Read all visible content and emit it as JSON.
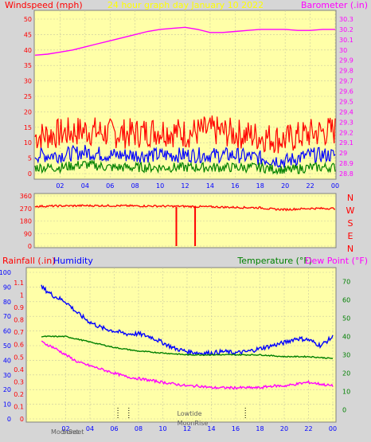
{
  "header": {
    "windspeed": "Windspeed (mph)",
    "title": "24 hour graph day   January 10 2022",
    "barometer": "Barometer (.in)",
    "rainfall": "Rainfall (.in)",
    "humidity": "Humidity",
    "temperature": "Temperature (°F)",
    "dewpoint": "Dew Point (°F)"
  },
  "compass": [
    "N",
    "W",
    "S",
    "E",
    "N"
  ],
  "events": {
    "lowtide": "Lowtide",
    "moonrise": "MoonRise",
    "moonset": "MoonSet",
    "sunset": "Sunset"
  },
  "colors": {
    "panel_bg": "#ffffa8",
    "outer_bg": "#d6d6d6",
    "wind_gust": "#ff0000",
    "wind_avg": "#0000ff",
    "wind_min": "#008000",
    "barometer": "#ff00ff",
    "humidity": "#0000ff",
    "temperature": "#008000",
    "dewpoint": "#ff00ff",
    "direction": "#ff0000"
  },
  "chart_data": [
    {
      "type": "line",
      "title": "24 hour graph day   January 10 2022",
      "x_ticks": [
        "02",
        "04",
        "06",
        "08",
        "10",
        "12",
        "14",
        "16",
        "18",
        "20",
        "22",
        "00"
      ],
      "y_left": {
        "label": "Windspeed (mph)",
        "range": [
          0,
          50
        ],
        "ticks": [
          "0",
          "5",
          "10",
          "15",
          "20",
          "25",
          "30",
          "35",
          "40",
          "45",
          "50"
        ]
      },
      "y_right": {
        "label": "Barometer (.in)",
        "range": [
          28.8,
          30.3
        ],
        "ticks": [
          "28.8",
          "28.9",
          "29",
          "29.1",
          "29.2",
          "29.3",
          "29.4",
          "29.5",
          "29.6",
          "29.7",
          "29.8",
          "29.9",
          "30",
          "30.1",
          "30.2",
          "30.3"
        ]
      },
      "series": [
        {
          "name": "Barometer (.in)",
          "axis": "right",
          "x": [
            0,
            1,
            2,
            3,
            4,
            5,
            6,
            7,
            8,
            9,
            10,
            11,
            12,
            13,
            14,
            15,
            16,
            17,
            18,
            19,
            20,
            21,
            22,
            23,
            24
          ],
          "y": [
            29.95,
            29.96,
            29.98,
            30.0,
            30.03,
            30.06,
            30.09,
            30.12,
            30.15,
            30.18,
            30.2,
            30.21,
            30.22,
            30.2,
            30.17,
            30.17,
            30.18,
            30.19,
            30.2,
            30.2,
            30.2,
            30.19,
            30.19,
            30.2,
            30.2
          ]
        },
        {
          "axis": "left",
          "x": [
            0,
            2,
            4,
            6,
            8,
            10,
            12,
            14,
            16,
            18,
            20,
            22,
            24
          ],
          "y": [
            12,
            13,
            14,
            13,
            13,
            14,
            13,
            14,
            13,
            12,
            11,
            13,
            14
          ]
        },
        {
          "axis": "left",
          "x": [
            0,
            2,
            4,
            6,
            8,
            10,
            12,
            14,
            16,
            18,
            20,
            22,
            24
          ],
          "y": [
            6,
            6,
            7,
            6,
            6,
            6,
            6,
            6,
            6,
            5,
            4,
            6,
            6
          ]
        },
        {
          "axis": "left",
          "x": [
            0,
            2,
            4,
            6,
            8,
            10,
            12,
            14,
            16,
            18,
            20,
            22,
            24
          ],
          "y": [
            2,
            2,
            3,
            2,
            2,
            2,
            2,
            2,
            2,
            2,
            1,
            2,
            2
          ]
        }
      ]
    },
    {
      "type": "line",
      "y_ticks": [
        "360",
        "270",
        "180",
        "90",
        "0"
      ],
      "series": [
        {
          "x": [
            0,
            2,
            4,
            6,
            8,
            10,
            11.3,
            11.5,
            12,
            12.8,
            13,
            14,
            16,
            18,
            19,
            20,
            22,
            24
          ],
          "y": [
            285,
            288,
            290,
            290,
            288,
            287,
            285,
            286,
            285,
            284,
            283,
            282,
            278,
            275,
            265,
            262,
            270,
            270
          ]
        }
      ],
      "spikes": [
        {
          "x": 11.3,
          "from": 280,
          "to": 0
        },
        {
          "x": 12.8,
          "from": 280,
          "to": 0
        }
      ]
    },
    {
      "type": "line",
      "x_ticks": [
        "02",
        "04",
        "06",
        "08",
        "10",
        "12",
        "14",
        "16",
        "18",
        "20",
        "22",
        "00"
      ],
      "y_left_rain": {
        "label": "Rainfall (.in)",
        "range": [
          0,
          1.1
        ],
        "ticks": [
          "0",
          "0.1",
          "0.2",
          "0.3",
          "0.4",
          "0.5",
          "0.6",
          "0.7",
          "0.8",
          "0.9",
          "1",
          "1.1"
        ]
      },
      "y_left_humidity": {
        "label": "Humidity",
        "range": [
          0,
          100
        ],
        "ticks": [
          "0",
          "10",
          "20",
          "30",
          "40",
          "50",
          "60",
          "70",
          "80",
          "90",
          "100"
        ]
      },
      "y_right": {
        "label": "Temperature (°F)",
        "range": [
          -5,
          75
        ],
        "ticks": [
          "0",
          "10",
          "20",
          "30",
          "40",
          "50",
          "60",
          "70"
        ]
      },
      "series": [
        {
          "name": "Humidity",
          "axis": "humidity",
          "x": [
            0,
            1,
            2,
            3,
            4,
            5,
            6,
            7,
            8,
            9,
            10,
            11,
            12,
            13,
            14,
            15,
            16,
            17,
            18,
            19,
            20,
            21,
            22,
            23,
            24
          ],
          "y": [
            90,
            84,
            80,
            72,
            66,
            62,
            60,
            58,
            58,
            56,
            52,
            48,
            46,
            45,
            45,
            46,
            45,
            46,
            48,
            50,
            52,
            55,
            54,
            50,
            56
          ]
        },
        {
          "name": "Temperature (°F)",
          "axis": "right",
          "x": [
            0,
            2,
            4,
            6,
            8,
            10,
            12,
            14,
            16,
            18,
            20,
            22,
            24
          ],
          "y": [
            40,
            40,
            37,
            34,
            32,
            31,
            30,
            30,
            30,
            30,
            29,
            29,
            28
          ]
        },
        {
          "name": "Dew Point (°F)",
          "axis": "right",
          "x": [
            0,
            1,
            2,
            3,
            4,
            5,
            6,
            7,
            8,
            9,
            10,
            11,
            12,
            13,
            14,
            15,
            16,
            17,
            18,
            19,
            20,
            21,
            22,
            23,
            24
          ],
          "y": [
            37,
            34,
            30,
            26,
            24,
            22,
            20,
            18,
            17,
            16,
            15,
            14,
            13,
            13,
            12,
            12,
            12,
            12,
            12,
            13,
            13,
            14,
            15,
            14,
            13
          ]
        }
      ],
      "markers": [
        6.3,
        7.2,
        16.8
      ]
    }
  ]
}
